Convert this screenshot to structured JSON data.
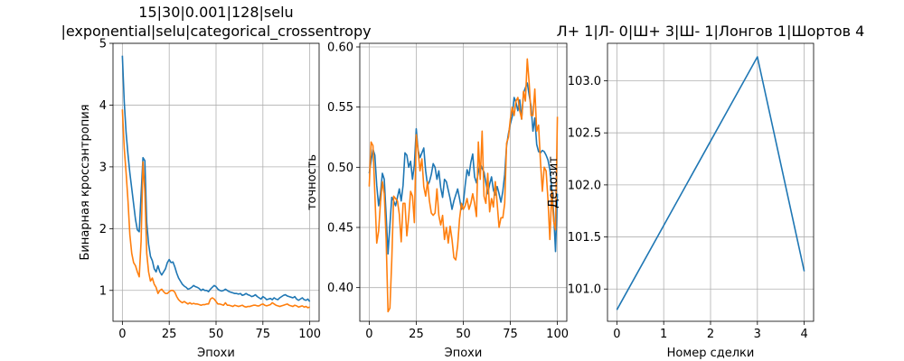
{
  "chart_data": [
    {
      "type": "line",
      "title": [
        "15|30|0.001|128|selu",
        "|exponential|selu|categorical_crossentropy"
      ],
      "xlabel": "Эпохи",
      "ylabel": "Бинарная кроссэнтропия",
      "xlim": [
        -5,
        105
      ],
      "ylim": [
        0.5,
        5.0
      ],
      "xticks": [
        0,
        25,
        50,
        75,
        100
      ],
      "yticks": [
        1,
        2,
        3,
        4,
        5
      ],
      "grid": true,
      "series": [
        {
          "color": "#1f77b4",
          "values": [
            4.8,
            4.05,
            3.55,
            3.2,
            2.9,
            2.65,
            2.4,
            2.15,
            1.98,
            1.95,
            2.55,
            3.15,
            3.1,
            2.1,
            1.75,
            1.55,
            1.48,
            1.35,
            1.3,
            1.4,
            1.3,
            1.25,
            1.3,
            1.35,
            1.45,
            1.5,
            1.45,
            1.46,
            1.38,
            1.28,
            1.2,
            1.15,
            1.1,
            1.07,
            1.05,
            1.02,
            1.03,
            1.05,
            1.08,
            1.06,
            1.05,
            1.03,
            1.0,
            1.02,
            1.0,
            1.0,
            0.98,
            1.02,
            1.05,
            1.08,
            1.06,
            1.02,
            1.0,
            0.99,
            1.0,
            1.02,
            1.0,
            0.98,
            0.97,
            0.96,
            0.95,
            0.95,
            0.94,
            0.95,
            0.92,
            0.93,
            0.95,
            0.93,
            0.92,
            0.9,
            0.91,
            0.93,
            0.9,
            0.88,
            0.86,
            0.9,
            0.88,
            0.85,
            0.86,
            0.87,
            0.85,
            0.88,
            0.86,
            0.85,
            0.88,
            0.9,
            0.92,
            0.93,
            0.91,
            0.9,
            0.89,
            0.88,
            0.9,
            0.86,
            0.84,
            0.86,
            0.88,
            0.85,
            0.84,
            0.86,
            0.82
          ]
        },
        {
          "color": "#ff7f0e",
          "values": [
            3.93,
            3.3,
            2.9,
            2.45,
            1.9,
            1.6,
            1.45,
            1.4,
            1.3,
            1.22,
            1.8,
            3.08,
            2.6,
            1.6,
            1.3,
            1.15,
            1.2,
            1.1,
            1.05,
            0.95,
            1.0,
            1.02,
            0.98,
            0.95,
            0.95,
            0.98,
            1.0,
            1.0,
            0.97,
            0.9,
            0.85,
            0.82,
            0.8,
            0.82,
            0.8,
            0.78,
            0.8,
            0.78,
            0.79,
            0.78,
            0.78,
            0.77,
            0.76,
            0.77,
            0.77,
            0.78,
            0.78,
            0.86,
            0.88,
            0.86,
            0.82,
            0.78,
            0.78,
            0.77,
            0.76,
            0.8,
            0.76,
            0.76,
            0.75,
            0.74,
            0.76,
            0.75,
            0.74,
            0.75,
            0.76,
            0.74,
            0.73,
            0.74,
            0.74,
            0.75,
            0.76,
            0.76,
            0.75,
            0.75,
            0.77,
            0.78,
            0.76,
            0.75,
            0.76,
            0.77,
            0.8,
            0.78,
            0.76,
            0.75,
            0.74,
            0.75,
            0.76,
            0.77,
            0.78,
            0.76,
            0.75,
            0.74,
            0.76,
            0.75,
            0.73,
            0.74,
            0.75,
            0.73,
            0.74,
            0.72,
            0.73
          ]
        }
      ]
    },
    {
      "type": "line",
      "title": [],
      "xlabel": "Эпохи",
      "ylabel": "точность",
      "xlim": [
        -5,
        105
      ],
      "ylim": [
        0.372,
        0.603
      ],
      "xticks": [
        0,
        25,
        50,
        75,
        100
      ],
      "yticks": [
        0.4,
        0.45,
        0.5,
        0.55,
        0.6
      ],
      "ytick_labels": [
        "0.40",
        "0.45",
        "0.50",
        "0.55",
        "0.60"
      ],
      "grid": true,
      "series": [
        {
          "color": "#1f77b4",
          "values": [
            0.495,
            0.505,
            0.515,
            0.51,
            0.485,
            0.468,
            0.478,
            0.495,
            0.49,
            0.46,
            0.428,
            0.452,
            0.475,
            0.472,
            0.468,
            0.475,
            0.482,
            0.472,
            0.485,
            0.512,
            0.51,
            0.5,
            0.505,
            0.49,
            0.502,
            0.532,
            0.514,
            0.508,
            0.512,
            0.516,
            0.497,
            0.485,
            0.488,
            0.494,
            0.503,
            0.5,
            0.49,
            0.497,
            0.483,
            0.475,
            0.49,
            0.488,
            0.481,
            0.474,
            0.465,
            0.472,
            0.477,
            0.482,
            0.474,
            0.465,
            0.47,
            0.485,
            0.498,
            0.493,
            0.504,
            0.511,
            0.492,
            0.487,
            0.496,
            0.503,
            0.499,
            0.496,
            0.487,
            0.478,
            0.486,
            0.492,
            0.481,
            0.477,
            0.484,
            0.478,
            0.471,
            0.48,
            0.494,
            0.518,
            0.528,
            0.536,
            0.542,
            0.558,
            0.554,
            0.547,
            0.556,
            0.54,
            0.562,
            0.566,
            0.57,
            0.56,
            0.551,
            0.53,
            0.541,
            0.519,
            0.513,
            0.512,
            0.514,
            0.513,
            0.51,
            0.506,
            0.498,
            0.482,
            0.462,
            0.43,
            0.478
          ]
        },
        {
          "color": "#ff7f0e",
          "values": [
            0.484,
            0.521,
            0.518,
            0.478,
            0.437,
            0.447,
            0.471,
            0.488,
            0.478,
            0.44,
            0.38,
            0.383,
            0.423,
            0.476,
            0.474,
            0.472,
            0.461,
            0.438,
            0.47,
            0.47,
            0.443,
            0.459,
            0.48,
            0.476,
            0.454,
            0.527,
            0.513,
            0.497,
            0.507,
            0.484,
            0.476,
            0.488,
            0.472,
            0.462,
            0.46,
            0.462,
            0.482,
            0.46,
            0.452,
            0.46,
            0.44,
            0.45,
            0.437,
            0.451,
            0.44,
            0.425,
            0.423,
            0.435,
            0.457,
            0.47,
            0.465,
            0.468,
            0.474,
            0.465,
            0.47,
            0.478,
            0.47,
            0.459,
            0.521,
            0.49,
            0.53,
            0.476,
            0.47,
            0.495,
            0.463,
            0.474,
            0.467,
            0.488,
            0.47,
            0.45,
            0.458,
            0.458,
            0.47,
            0.52,
            0.525,
            0.54,
            0.55,
            0.543,
            0.555,
            0.558,
            0.547,
            0.54,
            0.563,
            0.555,
            0.59,
            0.57,
            0.543,
            0.543,
            0.565,
            0.53,
            0.535,
            0.505,
            0.48,
            0.5,
            0.497,
            0.473,
            0.44,
            0.48,
            0.455,
            0.448,
            0.542
          ]
        }
      ]
    },
    {
      "type": "line",
      "title": [
        "Л+ 1|Л- 0|Ш+ 3|Ш- 1|Лонгов 1|Шортов 4"
      ],
      "xlabel": "Номер сделки",
      "ylabel": "Депозит",
      "xlim": [
        -0.2,
        4.2
      ],
      "ylim": [
        100.69,
        103.36
      ],
      "xticks": [
        0,
        1,
        2,
        3,
        4
      ],
      "yticks": [
        101.0,
        101.5,
        102.0,
        102.5,
        103.0
      ],
      "ytick_labels": [
        "101.0",
        "101.5",
        "102.0",
        "102.5",
        "103.0"
      ],
      "grid": true,
      "series": [
        {
          "color": "#1f77b4",
          "x": [
            0,
            1,
            2,
            3,
            4
          ],
          "values": [
            100.8,
            101.61,
            102.42,
            103.23,
            101.17
          ]
        }
      ]
    }
  ]
}
